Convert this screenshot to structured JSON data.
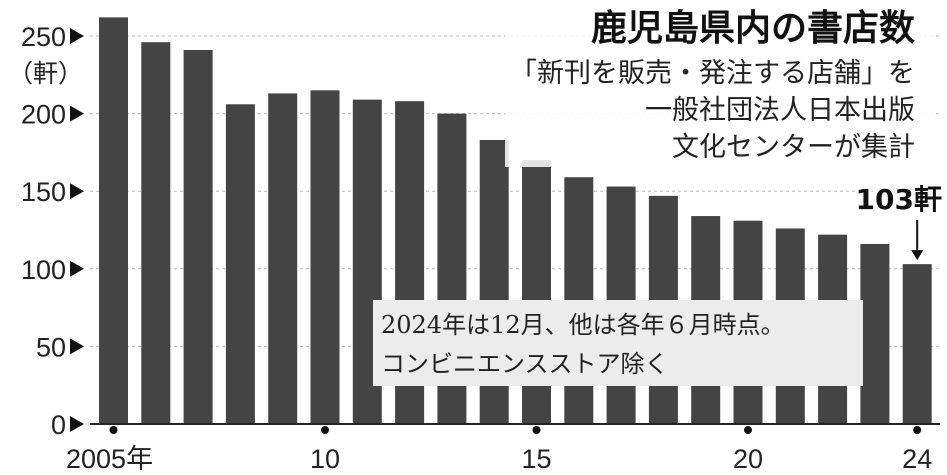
{
  "chart_data": {
    "type": "bar",
    "title": "鹿児島県内の書店数",
    "subtitle_lines": [
      "「新刊を販売・発注する店舗」を",
      "一般社団法人日本出版",
      "文化センターが集計"
    ],
    "y_unit": "（軒）",
    "ylim": [
      0,
      250
    ],
    "y_ticks": [
      0,
      50,
      100,
      150,
      200,
      250
    ],
    "grid": true,
    "categories": [
      "2005",
      "2006",
      "2007",
      "2008",
      "2009",
      "2010",
      "2011",
      "2012",
      "2013",
      "2014",
      "2015",
      "2016",
      "2017",
      "2018",
      "2019",
      "2020",
      "2021",
      "2022",
      "2023",
      "2024"
    ],
    "x_tick_labels": [
      {
        "index": 0,
        "label": "2005年"
      },
      {
        "index": 5,
        "label": "10"
      },
      {
        "index": 10,
        "label": "15"
      },
      {
        "index": 15,
        "label": "20"
      },
      {
        "index": 19,
        "label": "24"
      }
    ],
    "values": [
      262,
      246,
      241,
      206,
      213,
      215,
      209,
      208,
      200,
      183,
      170,
      159,
      153,
      147,
      134,
      131,
      126,
      122,
      116,
      103
    ],
    "callout": {
      "index": 19,
      "label": "103軒"
    },
    "note_lines": [
      "2024年は12月、他は各年６月時点。",
      "コンビニエンスストア除く"
    ],
    "colors": {
      "bar": "#444444",
      "grid": "#bbbbbb",
      "text": "#222222",
      "note_bg": "#ececec"
    }
  }
}
